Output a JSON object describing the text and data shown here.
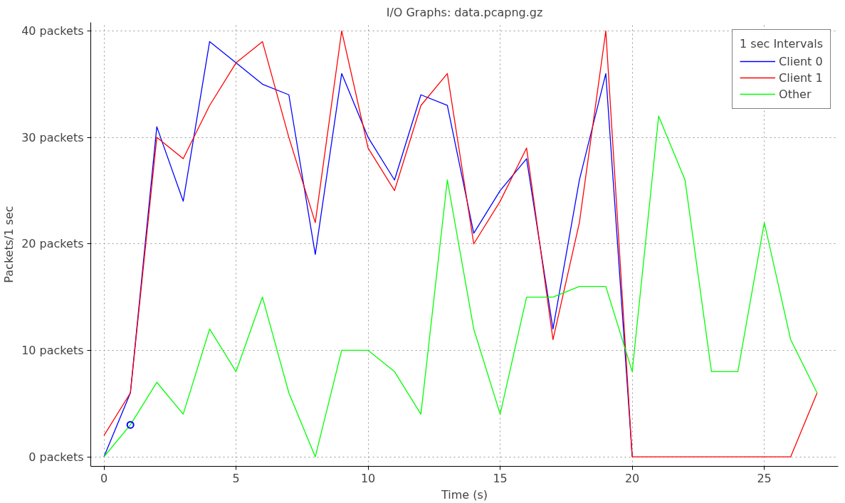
{
  "chart_data": {
    "type": "line",
    "title": "I/O Graphs: data.pcapng.gz",
    "xlabel": "Time (s)",
    "ylabel": "Packets/1 sec",
    "legend_title": "1 sec Intervals",
    "x": [
      0,
      1,
      2,
      3,
      4,
      5,
      6,
      7,
      8,
      9,
      10,
      11,
      12,
      13,
      14,
      15,
      16,
      17,
      18,
      19,
      20,
      21,
      22,
      23,
      24,
      25,
      26,
      27
    ],
    "series": [
      {
        "name": "Client 0",
        "color": "#0000ff",
        "values": [
          0,
          6,
          31,
          24,
          39,
          37,
          35,
          34,
          19,
          36,
          30,
          26,
          34,
          33,
          21,
          25,
          28,
          12,
          26,
          36,
          0,
          null,
          null,
          null,
          null,
          null,
          null,
          null
        ]
      },
      {
        "name": "Client 1",
        "color": "#ff0000",
        "values": [
          2,
          6,
          30,
          28,
          33,
          37,
          39,
          30,
          22,
          40,
          29,
          25,
          33,
          36,
          20,
          24,
          29,
          11,
          22,
          40,
          0,
          0,
          0,
          0,
          0,
          0,
          0,
          6
        ]
      },
      {
        "name": "Other",
        "color": "#00ff00",
        "values": [
          0,
          3,
          7,
          4,
          12,
          8,
          15,
          6,
          0,
          10,
          10,
          8,
          4,
          26,
          12,
          4,
          15,
          15,
          16,
          16,
          8,
          32,
          26,
          8,
          8,
          22,
          11,
          6
        ]
      },
      {
        "type": "scatter",
        "marker": "circle",
        "color": "#0000ff",
        "x": [
          1
        ],
        "values": [
          3
        ]
      }
    ],
    "xlim": [
      -0.5,
      27.8
    ],
    "ylim": [
      -0.9,
      40.8
    ],
    "xticks": [
      0,
      5,
      10,
      15,
      20,
      25
    ],
    "yticks": [
      {
        "value": 0,
        "label": "0 packets"
      },
      {
        "value": 10,
        "label": "10 packets"
      },
      {
        "value": 20,
        "label": "20 packets"
      },
      {
        "value": 30,
        "label": "30 packets"
      },
      {
        "value": 40,
        "label": "40 packets"
      }
    ],
    "grid": true,
    "legend": "top right",
    "marker": "none",
    "line_style": "solid"
  }
}
